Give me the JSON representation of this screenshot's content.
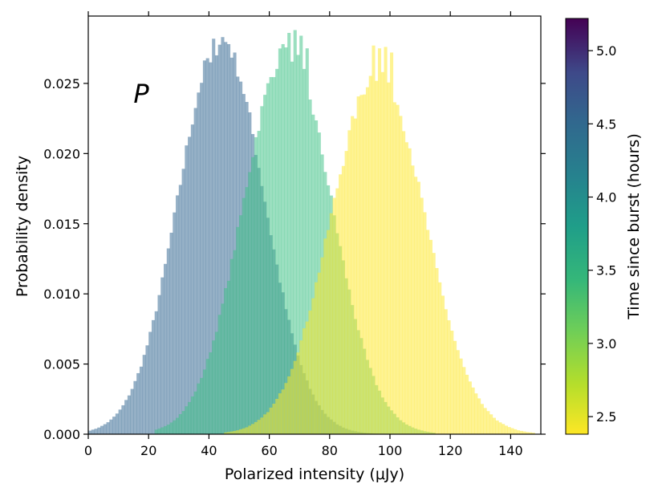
{
  "chart_data": {
    "type": "histogram",
    "title": "",
    "annotation": "P",
    "xlabel": "Polarized intensity (μJy)",
    "ylabel": "Probability density",
    "xlim": [
      0,
      150
    ],
    "ylim": [
      0,
      0.0298
    ],
    "x_ticks": [
      0,
      20,
      40,
      60,
      80,
      100,
      120,
      140
    ],
    "y_ticks": [
      0.0,
      0.005,
      0.01,
      0.015,
      0.02,
      0.025
    ],
    "x_tick_labels": [
      "0",
      "20",
      "40",
      "60",
      "80",
      "100",
      "120",
      "140"
    ],
    "y_tick_labels": [
      "0.000",
      "0.005",
      "0.010",
      "0.015",
      "0.020",
      "0.025"
    ],
    "bin_width": 1,
    "series": [
      {
        "time_hours": 4.6,
        "color": "#3e6f97",
        "opacity": 0.55,
        "mean": 44,
        "std": 14.2,
        "range": [
          0,
          98
        ],
        "peak": [
          [
            40,
            0.0265
          ],
          [
            42,
            0.027
          ],
          [
            44,
            0.0283
          ],
          [
            46,
            0.0278
          ],
          [
            48,
            0.0272
          ]
        ]
      },
      {
        "time_hours": 3.3,
        "color": "#3fc187",
        "opacity": 0.52,
        "mean": 66,
        "std": 14.6,
        "range": [
          22,
          115
        ],
        "peak": [
          [
            64,
            0.0278
          ],
          [
            66,
            0.0286
          ],
          [
            68,
            0.0288
          ],
          [
            70,
            0.0284
          ],
          [
            72,
            0.0275
          ]
        ]
      },
      {
        "time_hours": 2.4,
        "color": "#fde725",
        "opacity": 0.5,
        "mean": 96,
        "std": 15.5,
        "range": [
          45,
          148
        ],
        "peak": [
          [
            94,
            0.0277
          ],
          [
            96,
            0.0275
          ],
          [
            98,
            0.0276
          ],
          [
            100,
            0.0272
          ]
        ]
      }
    ],
    "colorbar": {
      "label": "Time since burst (hours)",
      "colormap": "viridis",
      "reversed": true,
      "range": [
        2.38,
        5.22
      ],
      "ticks": [
        2.5,
        3.0,
        3.5,
        4.0,
        4.5,
        5.0
      ],
      "tick_labels": [
        "2.5",
        "3.0",
        "3.5",
        "4.0",
        "4.5",
        "5.0"
      ]
    }
  }
}
